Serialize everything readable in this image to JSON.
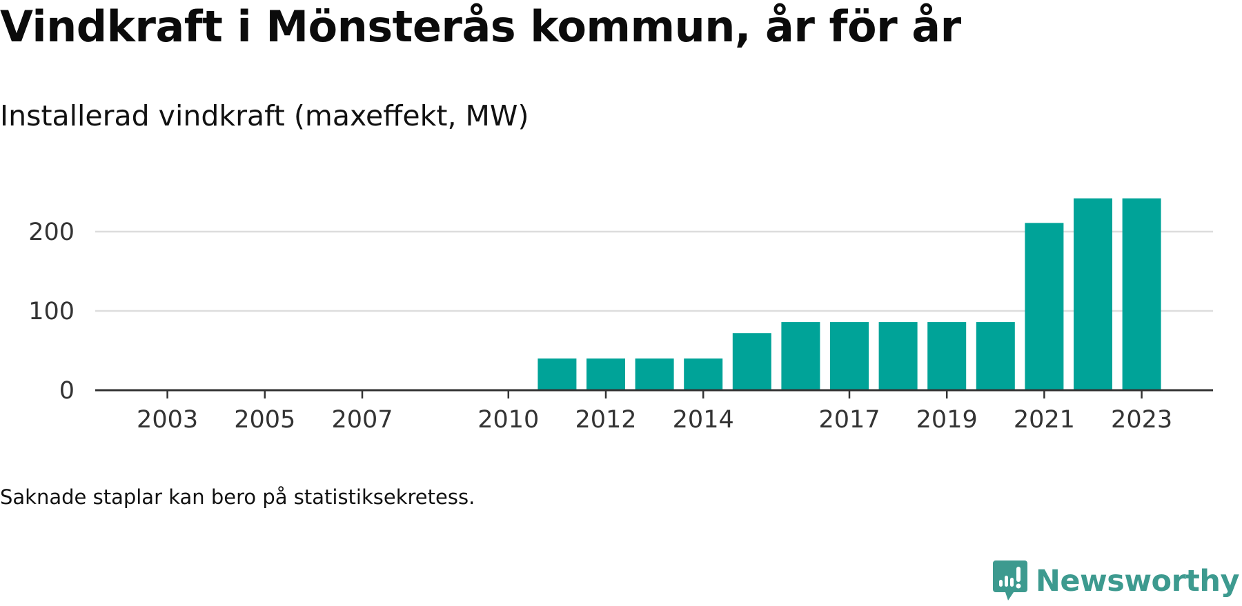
{
  "header": {
    "title": "Vindkraft i Mönsterås kommun, år för år",
    "subtitle": "Installerad vindkraft (maxeffekt, MW)"
  },
  "footnote": "Saknade staplar kan bero på statistiksekretess.",
  "brand": {
    "name": "Newsworthy",
    "icon": "newsworthy-logo-icon",
    "color": "#3d9a8f"
  },
  "colors": {
    "bar": "#00a398",
    "grid": "#dddddd",
    "axis": "#333333"
  },
  "chart_data": {
    "type": "bar",
    "title": "Installerad vindkraft (maxeffekt, MW)",
    "xlabel": "",
    "ylabel": "",
    "categories": [
      "2002",
      "2003",
      "2004",
      "2005",
      "2006",
      "2007",
      "2008",
      "2009",
      "2010",
      "2011",
      "2012",
      "2013",
      "2014",
      "2015",
      "2016",
      "2017",
      "2018",
      "2019",
      "2020",
      "2021",
      "2022",
      "2023"
    ],
    "x_tick_labels": [
      "2003",
      "2005",
      "2007",
      "2010",
      "2012",
      "2014",
      "2017",
      "2019",
      "2021",
      "2023"
    ],
    "y_ticks": [
      0,
      100,
      200
    ],
    "ylim": [
      0,
      250
    ],
    "grid": true,
    "series": [
      {
        "values": [
          0,
          0,
          0,
          0,
          0,
          0,
          0,
          0,
          0,
          40,
          40,
          40,
          40,
          72,
          86,
          86,
          86,
          86,
          86,
          211,
          242,
          242
        ]
      }
    ]
  }
}
